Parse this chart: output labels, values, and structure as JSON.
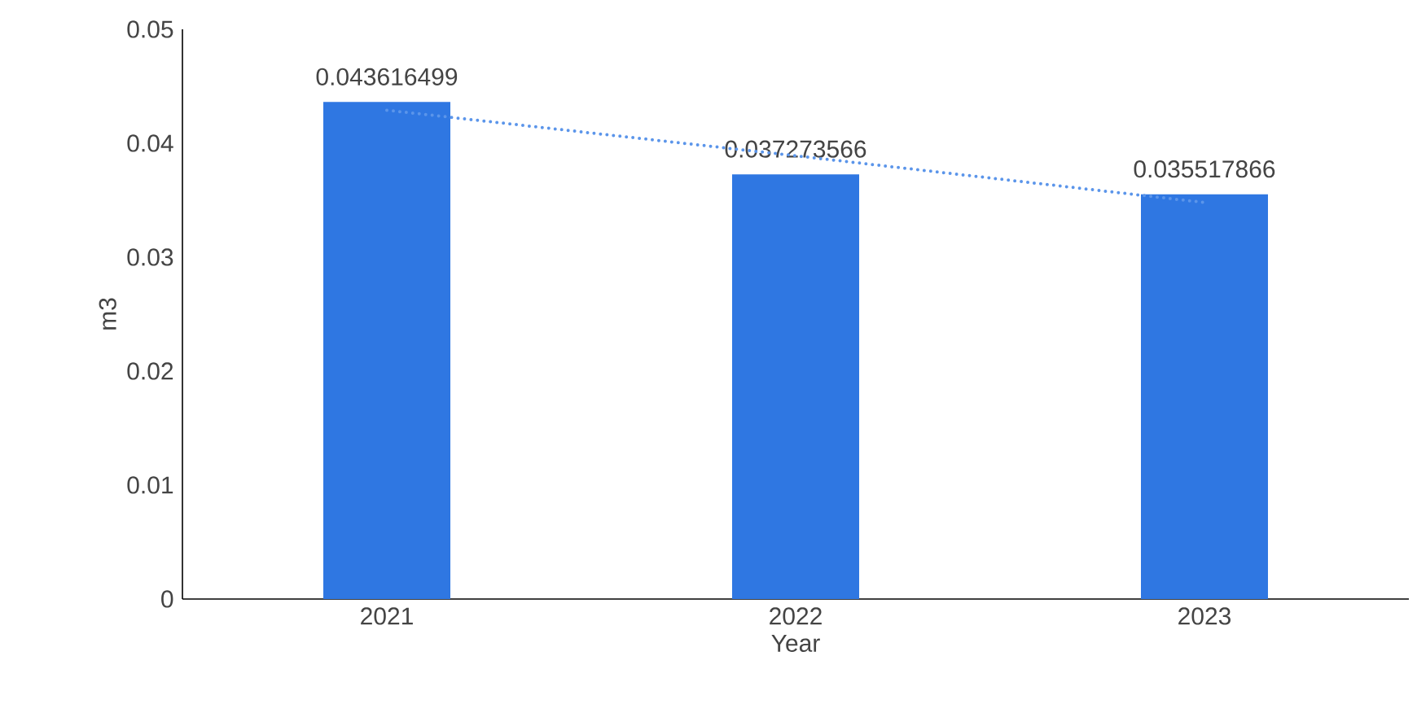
{
  "chart_data": {
    "type": "bar",
    "xlabel": "Year",
    "ylabel": "m3",
    "categories": [
      "2021",
      "2022",
      "2023"
    ],
    "values": [
      0.043616499,
      0.037273566,
      0.035517866
    ],
    "color": "#2f77e2",
    "value_labels": [
      "0.043616499",
      "0.037273566",
      "0.035517866"
    ],
    "ylim": [
      0,
      0.05
    ],
    "yticks": [
      0,
      0.01,
      0.02,
      0.03,
      0.04,
      0.05
    ],
    "grid": false,
    "series": [
      {
        "type": "line",
        "values": [
          0.0429,
          0.0389,
          0.0348
        ],
        "color": "#5b95ea",
        "line_style": "dotted",
        "marker": "none"
      }
    ]
  }
}
